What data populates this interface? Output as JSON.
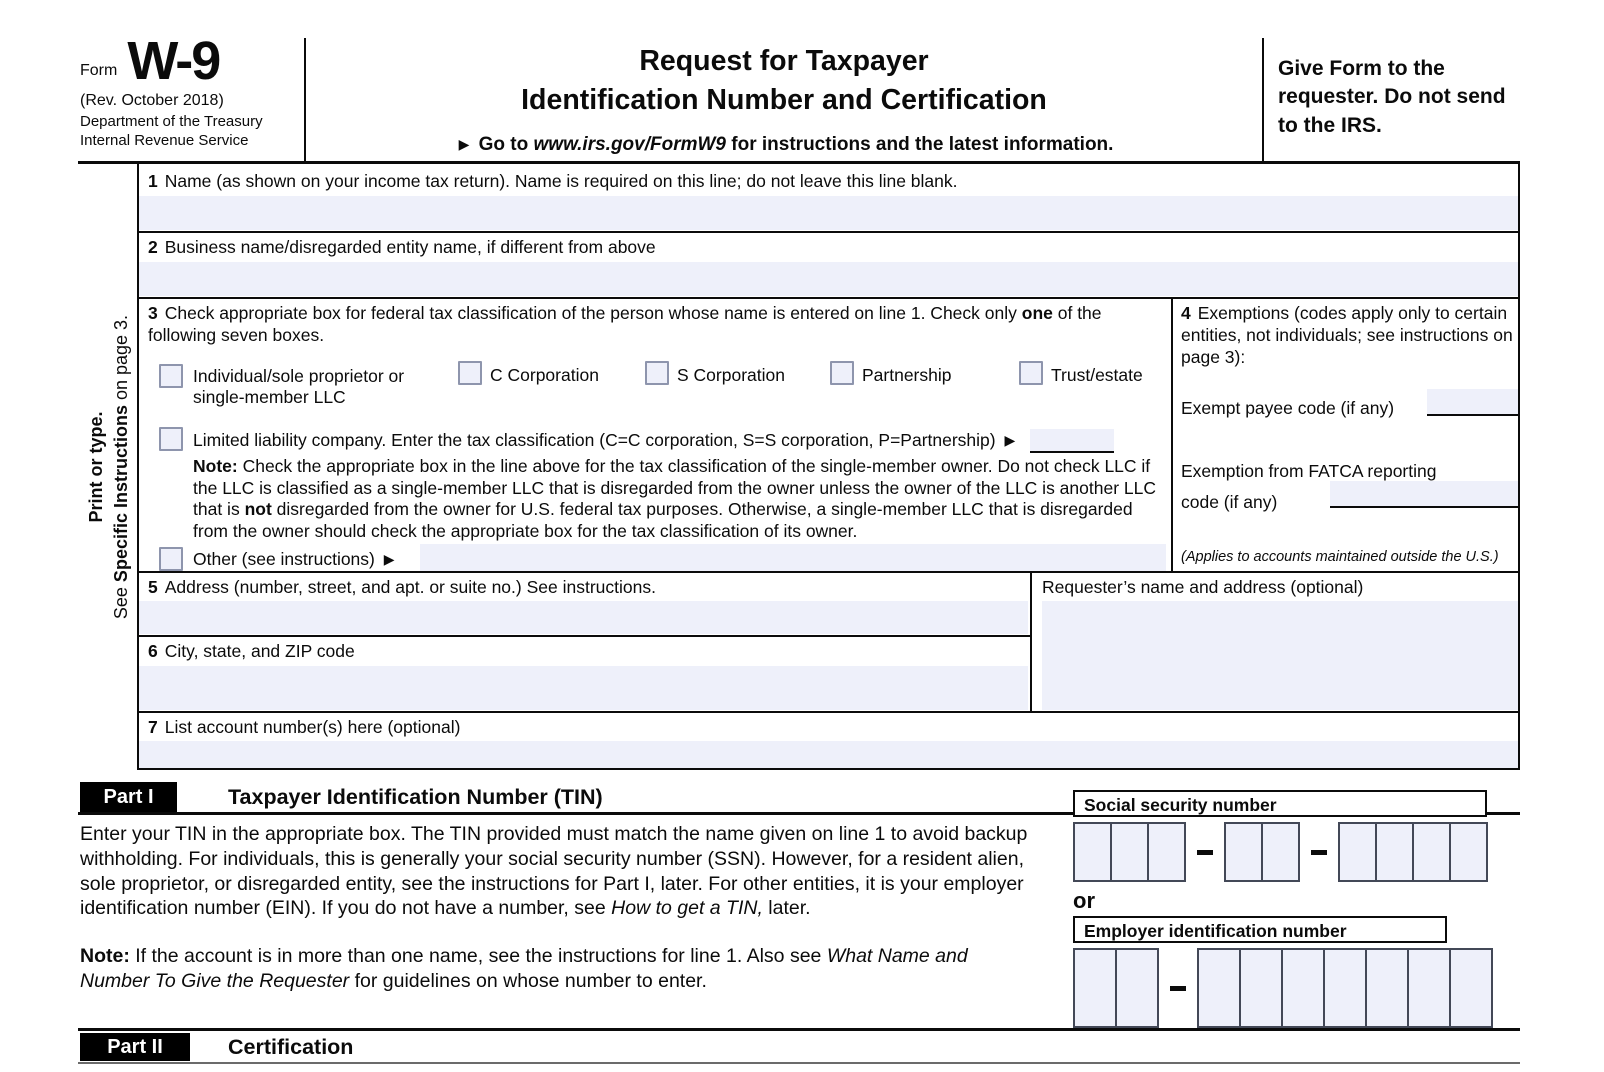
{
  "colors": {
    "field_bg": "#eef0fa"
  },
  "header": {
    "form_word": "Form",
    "form_number": "W-9",
    "revision": "(Rev. October 2018)",
    "agency_line1": "Department of the Treasury",
    "agency_line2": "Internal Revenue Service",
    "title_line1": "Request for Taxpayer",
    "title_line2": "Identification Number and Certification",
    "goto_prefix": "Go to ",
    "goto_url": "www.irs.gov/FormW9",
    "goto_suffix": " for instructions and the latest information.",
    "give_form_note": "Give Form to the requester. Do not send to the IRS."
  },
  "sidebar": {
    "print_or_type": "Print or type.",
    "see_prefix": "See ",
    "see_bold": "Specific Instructions",
    "see_suffix": " on page 3."
  },
  "line1": {
    "num": "1",
    "label": "Name (as shown on your income tax return). Name is required on this line; do not leave this line blank.",
    "value": ""
  },
  "line2": {
    "num": "2",
    "label": "Business name/disregarded entity name, if different from above",
    "value": ""
  },
  "line3": {
    "num": "3",
    "label_prefix": "Check appropriate box for federal tax classification of the person whose name is entered on line 1. Check only ",
    "label_bold": "one",
    "label_suffix": " of the following seven boxes.",
    "checkboxes": [
      "Individual/sole proprietor or single-member LLC",
      "C Corporation",
      "S Corporation",
      "Partnership",
      "Trust/estate"
    ],
    "llc_label": "Limited liability company. Enter the tax classification (C=C corporation, S=S corporation, P=Partnership) ",
    "llc_value": "",
    "note_bold": "Note:",
    "note_part1": " Check the appropriate box in the line above for the tax classification of the single-member owner.  Do not check LLC if the LLC is classified as a single-member LLC that is disregarded from the owner unless the owner of the LLC is another LLC that is ",
    "note_bold2": "not",
    "note_part2": " disregarded from the owner for U.S. federal tax purposes. Otherwise, a single-member LLC that is disregarded from the owner should check the appropriate box for the tax classification of its owner.",
    "other_label": "Other (see instructions) ",
    "other_value": ""
  },
  "line4": {
    "num": "4",
    "label": "Exemptions (codes apply only to certain entities, not individuals; see instructions on page 3):",
    "exempt_payee_label": "Exempt payee code (if any)",
    "exempt_payee_value": "",
    "fatca_line1": "Exemption from FATCA reporting",
    "fatca_line2": "code (if any)",
    "fatca_value": "",
    "applies_note": "(Applies to accounts maintained outside the U.S.)"
  },
  "line5": {
    "num": "5",
    "label": "Address (number, street, and apt. or suite no.) See instructions.",
    "value": ""
  },
  "line6": {
    "num": "6",
    "label": "City, state, and ZIP code",
    "value": ""
  },
  "line7": {
    "num": "7",
    "label": "List account number(s) here (optional)",
    "value": ""
  },
  "requester": {
    "label": "Requester’s name and address (optional)",
    "value": ""
  },
  "part1": {
    "badge": "Part I",
    "title": "Taxpayer Identification Number (TIN)",
    "para1_main": "Enter your TIN in the appropriate box. The TIN provided must match the name given on line 1 to avoid backup withholding. For individuals, this is generally your social security number (SSN). However, for a resident alien, sole proprietor, or disregarded entity, see the instructions for Part I, later. For other entities, it is your employer identification number (EIN). If you do not have a number, see ",
    "para1_italic": "How to get a TIN,",
    "para1_end": " later.",
    "note_bold": "Note:",
    "note_part1": " If the account is in more than one name, see the instructions for line 1. Also see ",
    "note_italic": "What Name and Number To Give the Requester",
    "note_part2": " for guidelines on whose number to enter.",
    "ssn_label": "Social security number",
    "or_label": "or",
    "ein_label": "Employer identification number",
    "ssn_groups": [
      3,
      2,
      4
    ],
    "ein_groups": [
      2,
      7
    ]
  },
  "part2": {
    "badge": "Part II",
    "title": "Certification"
  }
}
